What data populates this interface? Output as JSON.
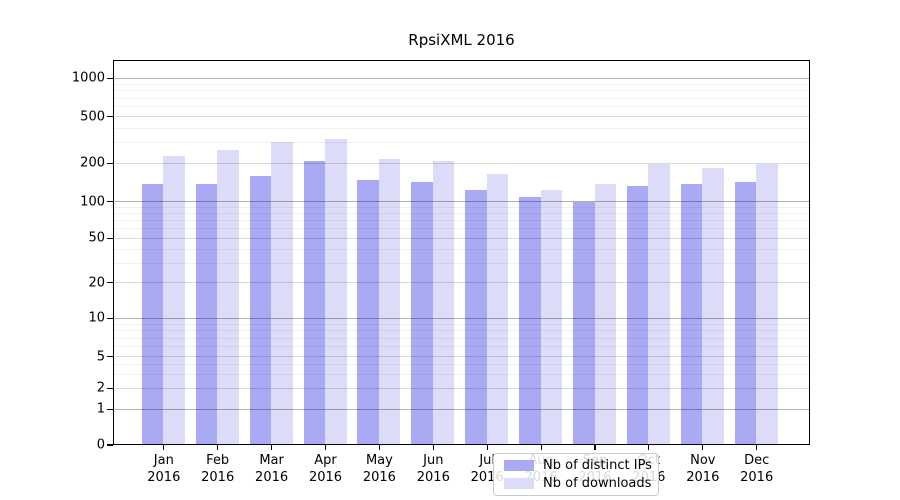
{
  "chart_data": {
    "type": "bar",
    "title": "RpsiXML 2016",
    "categories": [
      "Jan",
      "Feb",
      "Mar",
      "Apr",
      "May",
      "Jun",
      "Jul",
      "Aug",
      "Sep",
      "Oct",
      "Nov",
      "Dec"
    ],
    "category_year": "2016",
    "series": [
      {
        "name": "Nb of distinct IPs",
        "color": "#a9a9f4",
        "values": [
          140,
          138,
          160,
          210,
          150,
          145,
          125,
          110,
          100,
          135,
          138,
          145
        ]
      },
      {
        "name": "Nb of downloads",
        "color": "#dcdcf9",
        "values": [
          235,
          260,
          310,
          325,
          220,
          210,
          165,
          125,
          140,
          200,
          185,
          198
        ]
      }
    ],
    "yticks": [
      0,
      1,
      2,
      5,
      10,
      20,
      50,
      100,
      200,
      500,
      1000
    ],
    "ylim": [
      0,
      1000
    ],
    "yscale": "log-like (0,1,2,5,10,20,50,100,200,500,1000)",
    "grid": true,
    "legend_position": "bottom-center",
    "background": "#ffffff"
  }
}
